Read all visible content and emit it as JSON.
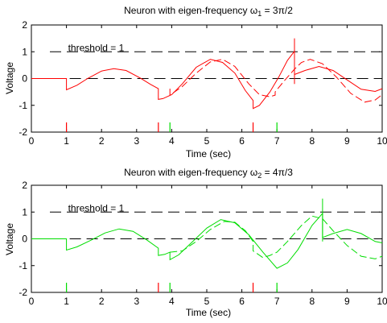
{
  "chart_data": [
    {
      "type": "line",
      "title_main": "Neuron with eigen-frequency ω",
      "title_sub": "1",
      "title_tail": " = 3π/2",
      "xlabel": "Time (sec)",
      "ylabel": "Voltage",
      "xlim": [
        0,
        10
      ],
      "ylim": [
        -2,
        2
      ],
      "xticks": [
        "0",
        "1",
        "2",
        "3",
        "4",
        "5",
        "6",
        "7",
        "8",
        "9",
        "10"
      ],
      "yticks": [
        "-2",
        "-1",
        "0",
        "1",
        "2"
      ],
      "threshold_label": "threshold = 1",
      "threshold": 1,
      "solid_color": "#ff0000",
      "dashed_color": "#ff0000",
      "solid": [
        [
          0,
          0
        ],
        [
          1,
          0
        ],
        [
          1,
          -0.42
        ],
        [
          1.3,
          -0.25
        ],
        [
          1.6,
          0.0
        ],
        [
          2,
          0.28
        ],
        [
          2.35,
          0.37
        ],
        [
          2.7,
          0.3
        ],
        [
          3.1,
          0.02
        ],
        [
          3.4,
          -0.22
        ],
        [
          3.62,
          -0.38
        ],
        [
          3.62,
          -0.78
        ],
        [
          3.75,
          -0.75
        ],
        [
          4.0,
          -0.6
        ],
        [
          4.3,
          -0.2
        ],
        [
          4.7,
          0.42
        ],
        [
          5.1,
          0.72
        ],
        [
          5.45,
          0.6
        ],
        [
          5.8,
          0.2
        ],
        [
          6.1,
          -0.45
        ],
        [
          6.32,
          -0.82
        ],
        [
          6.32,
          -1.12
        ],
        [
          6.5,
          -1.0
        ],
        [
          6.8,
          -0.5
        ],
        [
          7.05,
          0.05
        ],
        [
          7.3,
          0.68
        ],
        [
          7.5,
          1.02
        ],
        [
          7.5,
          0.15
        ],
        [
          7.8,
          0.3
        ],
        [
          8.2,
          0.45
        ],
        [
          8.6,
          0.3
        ],
        [
          9.0,
          -0.05
        ],
        [
          9.4,
          -0.4
        ],
        [
          9.8,
          -0.48
        ],
        [
          10,
          -0.38
        ]
      ],
      "dashed": [
        [
          3.95,
          -0.38
        ],
        [
          3.95,
          -0.62
        ],
        [
          4.3,
          -0.3
        ],
        [
          4.7,
          0.2
        ],
        [
          5.1,
          0.62
        ],
        [
          5.45,
          0.72
        ],
        [
          5.8,
          0.45
        ],
        [
          6.2,
          -0.2
        ],
        [
          6.5,
          -0.6
        ],
        [
          6.8,
          -0.68
        ],
        [
          6.95,
          -0.62
        ],
        [
          6.95,
          -0.5
        ],
        [
          7.2,
          -0.1
        ],
        [
          7.5,
          0.35
        ],
        [
          7.7,
          0.6
        ],
        [
          7.95,
          0.72
        ],
        [
          8.3,
          0.55
        ],
        [
          8.7,
          0.05
        ],
        [
          9.1,
          -0.55
        ],
        [
          9.5,
          -0.88
        ],
        [
          9.8,
          -0.8
        ],
        [
          10,
          -0.6
        ]
      ],
      "spike_line": [
        [
          7.5,
          -0.2
        ],
        [
          7.5,
          1.5
        ]
      ],
      "spike_line_color": "#ff0000",
      "events": [
        {
          "t": 1.0,
          "color": "#ff0000"
        },
        {
          "t": 3.62,
          "color": "#ff0000"
        },
        {
          "t": 3.95,
          "color": "#00dd00"
        },
        {
          "t": 6.32,
          "color": "#ff0000"
        },
        {
          "t": 7.0,
          "color": "#00dd00"
        }
      ]
    },
    {
      "type": "line",
      "title_main": "Neuron with eigen-frequency ω",
      "title_sub": "2",
      "title_tail": " = 4π/3",
      "xlabel": "Time (sec)",
      "ylabel": "Voltage",
      "xlim": [
        0,
        10
      ],
      "ylim": [
        -2,
        2
      ],
      "xticks": [
        "0",
        "1",
        "2",
        "3",
        "4",
        "5",
        "6",
        "7",
        "8",
        "9",
        "10"
      ],
      "yticks": [
        "-2",
        "-1",
        "0",
        "1",
        "2"
      ],
      "threshold_label": "threshold = 1",
      "threshold": 1,
      "solid_color": "#00dd00",
      "dashed_color": "#00dd00",
      "solid": [
        [
          0,
          0
        ],
        [
          1,
          0
        ],
        [
          1,
          -0.42
        ],
        [
          1.3,
          -0.3
        ],
        [
          1.7,
          -0.05
        ],
        [
          2.1,
          0.22
        ],
        [
          2.5,
          0.37
        ],
        [
          2.9,
          0.28
        ],
        [
          3.3,
          -0.05
        ],
        [
          3.62,
          -0.35
        ],
        [
          3.62,
          -0.62
        ],
        [
          3.8,
          -0.58
        ],
        [
          3.95,
          -0.5
        ],
        [
          3.95,
          -0.78
        ],
        [
          4.2,
          -0.6
        ],
        [
          4.6,
          -0.1
        ],
        [
          5.0,
          0.4
        ],
        [
          5.4,
          0.72
        ],
        [
          5.8,
          0.6
        ],
        [
          6.2,
          0.15
        ],
        [
          6.6,
          -0.5
        ],
        [
          7.0,
          -1.1
        ],
        [
          7.3,
          -0.9
        ],
        [
          7.6,
          -0.4
        ],
        [
          8.0,
          0.5
        ],
        [
          8.3,
          0.95
        ],
        [
          8.3,
          0.05
        ],
        [
          8.6,
          0.2
        ],
        [
          9.0,
          0.35
        ],
        [
          9.4,
          0.2
        ],
        [
          9.8,
          -0.1
        ],
        [
          10,
          -0.15
        ]
      ],
      "dashed": [
        [
          3.95,
          -0.5
        ],
        [
          4.3,
          -0.45
        ],
        [
          4.7,
          -0.1
        ],
        [
          5.1,
          0.35
        ],
        [
          5.5,
          0.65
        ],
        [
          5.8,
          0.62
        ],
        [
          6.1,
          0.3
        ],
        [
          6.32,
          -0.1
        ],
        [
          6.32,
          -0.45
        ],
        [
          6.6,
          -0.7
        ],
        [
          6.8,
          -0.62
        ],
        [
          7.0,
          -0.5
        ],
        [
          7.3,
          -0.1
        ],
        [
          7.7,
          0.5
        ],
        [
          8.0,
          0.85
        ],
        [
          8.3,
          0.75
        ],
        [
          8.6,
          0.3
        ],
        [
          9.0,
          -0.25
        ],
        [
          9.4,
          -0.65
        ],
        [
          9.8,
          -0.75
        ],
        [
          10,
          -0.65
        ]
      ],
      "spike_line": [
        [
          8.3,
          -0.1
        ],
        [
          8.3,
          1.5
        ]
      ],
      "spike_line_color": "#00dd00",
      "events": [
        {
          "t": 1.0,
          "color": "#00dd00"
        },
        {
          "t": 3.62,
          "color": "#ff0000"
        },
        {
          "t": 3.95,
          "color": "#00dd00"
        },
        {
          "t": 6.32,
          "color": "#ff0000"
        },
        {
          "t": 7.0,
          "color": "#00dd00"
        }
      ]
    }
  ]
}
